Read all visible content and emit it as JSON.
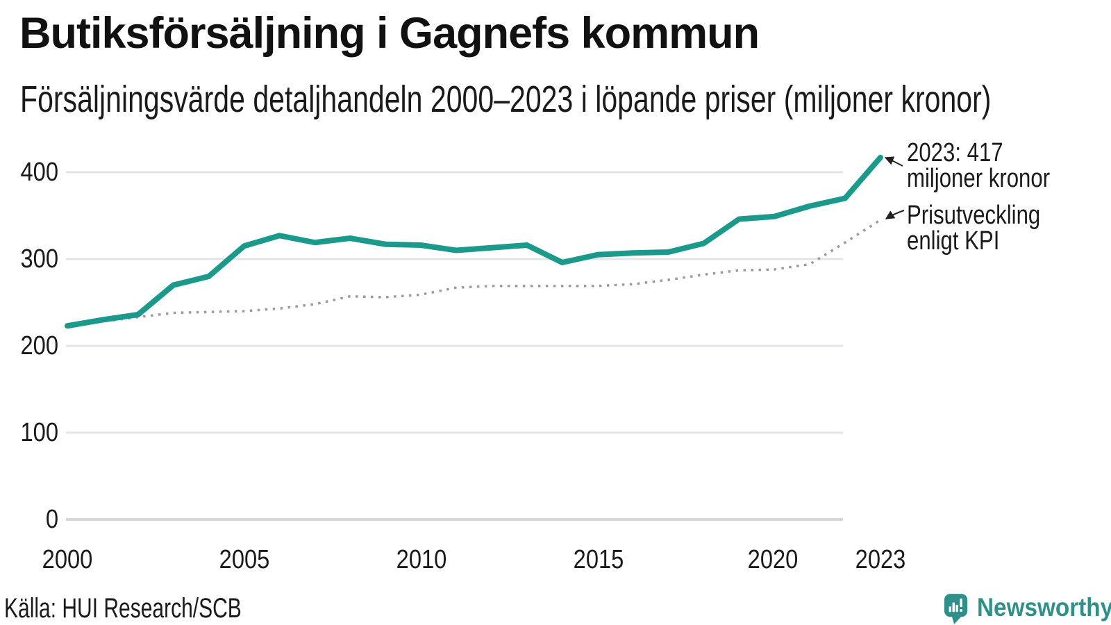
{
  "header": {
    "title": "Butiksförsäljning i Gagnefs kommun",
    "subtitle": "Försäljningsvärde detaljhandeln 2000–2023 i löpande priser (miljoner kronor)"
  },
  "chart_data": {
    "type": "line",
    "title": "Butiksförsäljning i Gagnefs kommun",
    "subtitle": "Försäljningsvärde detaljhandeln 2000–2023 i löpande priser (miljoner kronor)",
    "x": [
      2000,
      2001,
      2002,
      2003,
      2004,
      2005,
      2006,
      2007,
      2008,
      2009,
      2010,
      2011,
      2012,
      2013,
      2014,
      2015,
      2016,
      2017,
      2018,
      2019,
      2020,
      2021,
      2022,
      2023
    ],
    "series": [
      {
        "name": "Försäljningsvärde detaljhandeln, löpande priser (miljoner kronor)",
        "color": "#1b9a8c",
        "style": "solid",
        "values": [
          223,
          230,
          236,
          270,
          280,
          315,
          327,
          319,
          324,
          317,
          316,
          310,
          313,
          316,
          296,
          305,
          307,
          308,
          318,
          346,
          349,
          361,
          370,
          417
        ]
      },
      {
        "name": "Prisutveckling enligt KPI",
        "color": "#9b9b9b",
        "style": "dotted",
        "values": [
          223,
          228,
          233,
          238,
          239,
          240,
          243,
          248,
          257,
          256,
          259,
          267,
          269,
          269,
          269,
          269,
          271,
          276,
          282,
          287,
          288,
          294,
          319,
          345
        ]
      }
    ],
    "y_ticks": [
      400,
      300,
      200,
      100,
      0
    ],
    "x_ticks": [
      "2000",
      "2005",
      "2010",
      "2015",
      "2020",
      "2023"
    ],
    "ylim": [
      0,
      440
    ],
    "xlim": [
      2000,
      2023
    ],
    "grid": "horizontal",
    "legend": "none",
    "annotations": [
      {
        "line1": "2023: 417",
        "line2": "miljoner kronor",
        "target_series": "Försäljningsvärde",
        "target_year": 2023,
        "target_value": 417
      },
      {
        "line1": "Prisutveckling",
        "line2": "enligt KPI",
        "target_series": "Prisutveckling enligt KPI",
        "target_year": 2023,
        "target_value": 345
      }
    ]
  },
  "footer": {
    "source": "Källa: HUI Research/SCB",
    "brand": "Newsworthy"
  },
  "colors": {
    "sales_line": "#1b9a8c",
    "kpi_line": "#9b9b9b",
    "brand_teal": "#2f9089",
    "gridline": "#e4e4e8"
  }
}
